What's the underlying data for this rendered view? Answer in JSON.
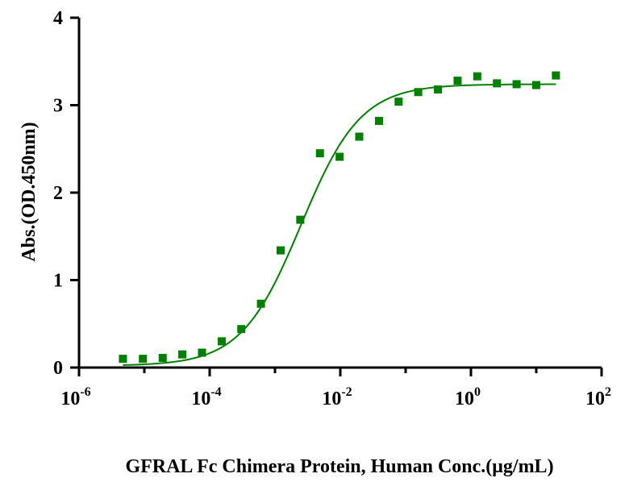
{
  "chart_data": {
    "type": "scatter",
    "title": "",
    "xlabel": "GFRAL Fc Chimera Protein, Human Conc.(μg/mL)",
    "ylabel": "Abs.(OD.450nm)",
    "x_scale": "log",
    "xlim": [
      1e-06,
      100
    ],
    "ylim": [
      0,
      4
    ],
    "x_ticks": [
      {
        "value": 1e-06,
        "base": "10",
        "exp": "-6"
      },
      {
        "value": 0.0001,
        "base": "10",
        "exp": "-4"
      },
      {
        "value": 0.01,
        "base": "10",
        "exp": "-2"
      },
      {
        "value": 1,
        "base": "10",
        "exp": "0"
      },
      {
        "value": 100,
        "base": "10",
        "exp": "2"
      }
    ],
    "y_ticks": [
      {
        "value": 0,
        "label": "0"
      },
      {
        "value": 1,
        "label": "1"
      },
      {
        "value": 2,
        "label": "2"
      },
      {
        "value": 3,
        "label": "3"
      },
      {
        "value": 4,
        "label": "4"
      }
    ],
    "grid": false,
    "legend": "none",
    "color": "#008000",
    "series": [
      {
        "x": [
          4.7e-06,
          9.5e-06,
          1.91e-05,
          3.81e-05,
          7.63e-05,
          0.000153,
          0.000305,
          0.00061,
          0.00122,
          0.00244,
          0.00488,
          0.00977,
          0.0195,
          0.0391,
          0.0781,
          0.156,
          0.3125,
          0.625,
          1.25,
          2.5,
          5,
          10,
          20
        ],
        "y": [
          0.1,
          0.1,
          0.11,
          0.15,
          0.17,
          0.3,
          0.44,
          0.73,
          1.34,
          1.69,
          2.45,
          2.41,
          2.64,
          2.82,
          3.04,
          3.15,
          3.18,
          3.28,
          3.33,
          3.25,
          3.24,
          3.23,
          3.34
        ]
      }
    ],
    "fit_curve": {
      "model": "4PL",
      "bottom": 0.02,
      "top": 3.24,
      "ec50": 0.0025,
      "hill": 0.95,
      "x_range": [
        4.7e-06,
        20
      ]
    }
  }
}
